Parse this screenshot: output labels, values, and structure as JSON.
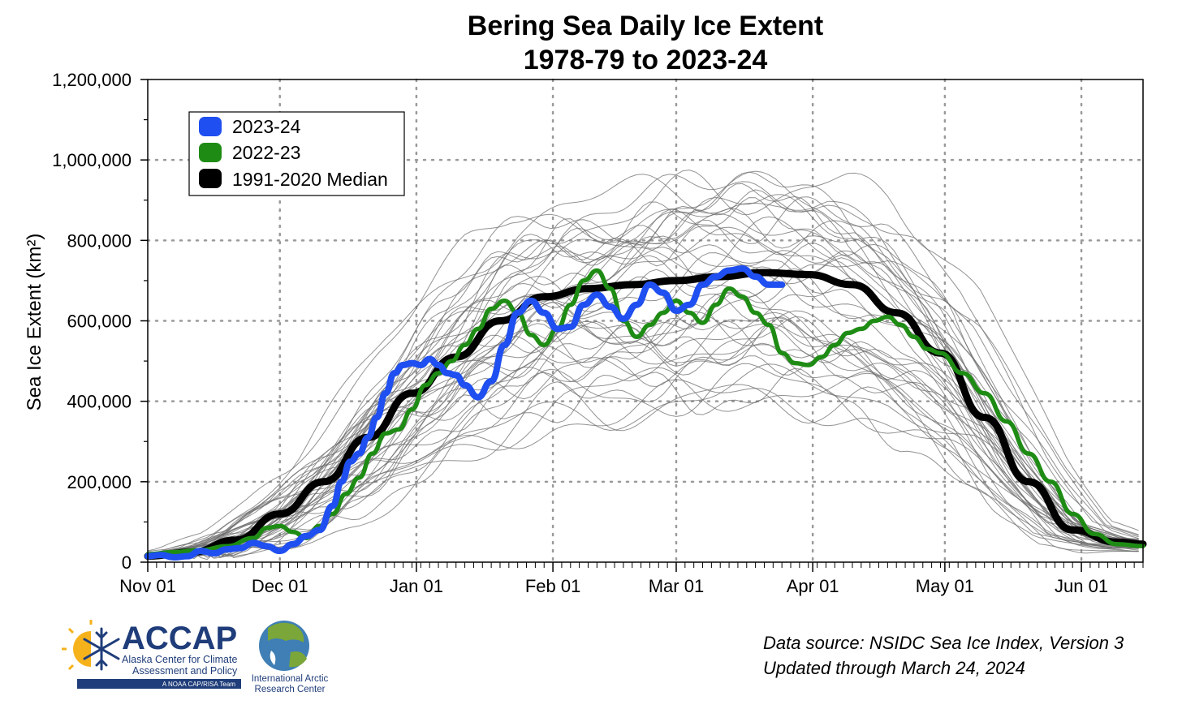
{
  "chart_data": {
    "type": "line",
    "title": [
      "Bering Sea Daily Ice Extent",
      "1978-79 to 2023-24"
    ],
    "xlabel": "",
    "ylabel": "Sea Ice Extent (km²)",
    "ylim": [
      0,
      1200000
    ],
    "yticks": [
      "0",
      "200,000",
      "400,000",
      "600,000",
      "800,000",
      "1,000,000",
      "1,200,000"
    ],
    "xlim": [
      0,
      226
    ],
    "xticks": [
      {
        "day": 0,
        "label": "Nov 01"
      },
      {
        "day": 30,
        "label": "Dec 01"
      },
      {
        "day": 61,
        "label": "Jan 01"
      },
      {
        "day": 92,
        "label": "Feb 01"
      },
      {
        "day": 120,
        "label": "Mar 01"
      },
      {
        "day": 151,
        "label": "Apr 01"
      },
      {
        "day": 181,
        "label": "May 01"
      },
      {
        "day": 212,
        "label": "Jun 01"
      }
    ],
    "x_unit": "day since Nov 01",
    "grid": true,
    "legend_position": "top-left",
    "series": [
      {
        "name": "2023-24",
        "color": "#1f4ff0",
        "x": [
          0,
          3,
          6,
          9,
          12,
          15,
          18,
          21,
          24,
          27,
          30,
          33,
          36,
          39,
          42,
          44,
          46,
          48,
          50,
          52,
          54,
          56,
          58,
          60,
          62,
          64,
          66,
          68,
          70,
          72,
          75,
          78,
          81,
          84,
          87,
          90,
          93,
          96,
          99,
          102,
          105,
          108,
          111,
          114,
          117,
          120,
          123,
          126,
          129,
          132,
          135,
          138,
          141,
          144
        ],
        "values": [
          15000,
          18000,
          12000,
          15000,
          28000,
          22000,
          32000,
          35000,
          48000,
          40000,
          28000,
          45000,
          65000,
          80000,
          140000,
          200000,
          250000,
          270000,
          310000,
          360000,
          420000,
          470000,
          490000,
          495000,
          490000,
          505000,
          490000,
          470000,
          465000,
          440000,
          410000,
          450000,
          540000,
          620000,
          650000,
          620000,
          580000,
          585000,
          640000,
          665000,
          635000,
          605000,
          640000,
          690000,
          670000,
          625000,
          640000,
          690000,
          710000,
          725000,
          730000,
          710000,
          690000,
          690000
        ]
      },
      {
        "name": "2022-23",
        "color": "#1e8c14",
        "x": [
          0,
          6,
          12,
          18,
          24,
          27,
          30,
          33,
          36,
          39,
          42,
          45,
          48,
          51,
          54,
          57,
          60,
          63,
          66,
          69,
          72,
          75,
          78,
          81,
          84,
          87,
          90,
          93,
          96,
          99,
          102,
          105,
          108,
          111,
          114,
          117,
          120,
          123,
          126,
          129,
          132,
          135,
          138,
          141,
          144,
          147,
          150,
          153,
          156,
          159,
          162,
          165,
          168,
          171,
          174,
          177,
          180,
          185,
          190,
          195,
          200,
          205,
          210,
          215,
          220,
          226
        ],
        "values": [
          20000,
          25000,
          30000,
          40000,
          60000,
          85000,
          90000,
          75000,
          60000,
          90000,
          120000,
          170000,
          210000,
          270000,
          320000,
          330000,
          380000,
          440000,
          470000,
          500000,
          540000,
          580000,
          630000,
          650000,
          620000,
          565000,
          540000,
          580000,
          640000,
          700000,
          725000,
          680000,
          600000,
          560000,
          590000,
          620000,
          650000,
          620000,
          595000,
          640000,
          680000,
          660000,
          620000,
          590000,
          520000,
          495000,
          490000,
          510000,
          540000,
          570000,
          580000,
          600000,
          610000,
          590000,
          560000,
          530000,
          520000,
          470000,
          420000,
          350000,
          270000,
          200000,
          120000,
          70000,
          45000,
          40000
        ]
      },
      {
        "name": "1991-2020 Median",
        "color": "#000000",
        "x": [
          0,
          10,
          20,
          30,
          40,
          50,
          60,
          70,
          80,
          90,
          100,
          110,
          120,
          130,
          140,
          150,
          160,
          170,
          180,
          190,
          200,
          210,
          220,
          226
        ],
        "values": [
          15000,
          25000,
          55000,
          120000,
          200000,
          310000,
          420000,
          510000,
          600000,
          660000,
          680000,
          690000,
          700000,
          710000,
          720000,
          715000,
          690000,
          620000,
          520000,
          360000,
          200000,
          80000,
          50000,
          45000
        ]
      }
    ],
    "annotations": [
      "Data source: NSIDC Sea Ice Index, Version 3",
      "Updated through March 24, 2024"
    ]
  },
  "logos": {
    "accap": {
      "name": "ACCAP",
      "line1": "Alaska Center for Climate",
      "line2": "Assessment and Policy",
      "tag": "A NOAA CAP/RISA Team"
    },
    "iarc": {
      "line1": "International Arctic",
      "line2": "Research Center"
    }
  }
}
